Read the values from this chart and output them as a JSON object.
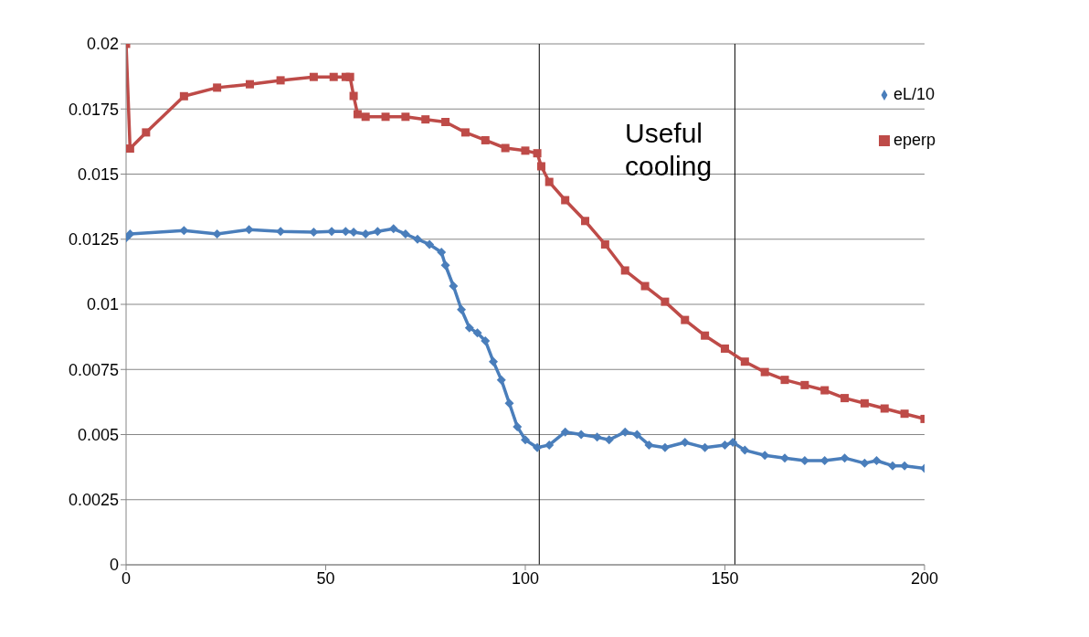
{
  "chart_data": {
    "type": "line",
    "xlim": [
      0,
      200
    ],
    "xticks": [
      0,
      50,
      100,
      150,
      200
    ],
    "ylim": [
      0,
      0.02
    ],
    "yticks": [
      0,
      0.0025,
      0.005,
      0.0075,
      0.01,
      0.0125,
      0.015,
      0.0175,
      0.02
    ],
    "grid": "y",
    "legend": "top right",
    "annotations": [
      "Useful cooling"
    ],
    "ref_lines": [
      {
        "axis": "x",
        "value": 103.5,
        "color": "#000000"
      },
      {
        "axis": "x",
        "value": 152.5,
        "color": "#000000"
      }
    ],
    "series": [
      {
        "name": "eL/10",
        "color": "#4a7ebb",
        "marker": "diamond",
        "x": [
          0,
          1,
          14.5,
          22.8,
          30.8,
          38.7,
          47,
          51.5,
          55,
          57,
          60,
          63,
          67,
          70,
          73,
          76,
          79,
          80,
          82,
          84,
          86,
          88,
          90,
          92,
          94,
          96,
          98,
          100,
          103,
          106,
          110,
          114,
          118,
          121,
          125,
          128,
          131,
          135,
          140,
          145,
          150,
          152,
          155,
          160,
          165,
          170,
          175,
          180,
          185,
          188,
          192,
          195,
          200
        ],
        "values": [
          0.01255,
          0.0127,
          0.01283,
          0.0127,
          0.01287,
          0.0128,
          0.01277,
          0.0128,
          0.0128,
          0.01277,
          0.0127,
          0.0128,
          0.0129,
          0.0127,
          0.0125,
          0.0123,
          0.012,
          0.0115,
          0.0107,
          0.0098,
          0.0091,
          0.0089,
          0.0086,
          0.0078,
          0.0071,
          0.0062,
          0.0053,
          0.0048,
          0.0045,
          0.0046,
          0.0051,
          0.005,
          0.0049,
          0.0048,
          0.0051,
          0.005,
          0.0046,
          0.0045,
          0.0047,
          0.0045,
          0.0046,
          0.0047,
          0.0044,
          0.0042,
          0.0041,
          0.004,
          0.004,
          0.0041,
          0.0039,
          0.004,
          0.0038,
          0.0038,
          0.0037
        ]
      },
      {
        "name": "eperp",
        "color": "#be4b48",
        "marker": "square",
        "x": [
          0,
          1,
          5,
          14.5,
          22.8,
          31,
          38.7,
          47,
          52,
          55,
          56.1,
          57,
          58,
          60,
          65,
          70,
          75,
          80,
          85,
          90,
          95,
          100,
          103,
          104,
          106,
          110,
          115,
          120,
          125,
          130,
          135,
          140,
          145,
          150,
          155,
          160,
          165,
          170,
          175,
          180,
          185,
          190,
          195,
          200
        ],
        "values": [
          0.02,
          0.01598,
          0.0166,
          0.01799,
          0.01832,
          0.01845,
          0.0186,
          0.01873,
          0.01873,
          0.01873,
          0.01873,
          0.018,
          0.0173,
          0.0172,
          0.0172,
          0.0172,
          0.0171,
          0.017,
          0.0166,
          0.0163,
          0.016,
          0.0159,
          0.0158,
          0.0153,
          0.0147,
          0.014,
          0.0132,
          0.0123,
          0.0113,
          0.0107,
          0.0101,
          0.0094,
          0.0088,
          0.0083,
          0.0078,
          0.0074,
          0.0071,
          0.0069,
          0.0067,
          0.0064,
          0.0062,
          0.006,
          0.0058,
          0.0056
        ]
      }
    ]
  }
}
